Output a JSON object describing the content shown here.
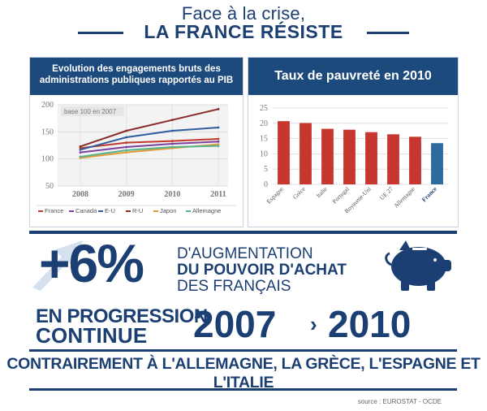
{
  "header": {
    "title_line1": "Face à la crise,",
    "title_line2": "LA FRANCE RÉSISTE"
  },
  "left_panel": {
    "title": "Evolution des engagements bruts des administrations publiques rapportés au PIB"
  },
  "right_panel": {
    "title": "Taux de pauvreté en 2010"
  },
  "chart_data": [
    {
      "type": "line",
      "annotation": "base 100 en 2007",
      "x": [
        "2008",
        "2009",
        "2010",
        "2011"
      ],
      "ylim": [
        50,
        200
      ],
      "yticks": [
        50,
        100,
        150,
        200
      ],
      "grid": true,
      "legend_position": "bottom",
      "series": [
        {
          "name": "France",
          "color": "#c0392b",
          "values": [
            120,
            130,
            133,
            137
          ]
        },
        {
          "name": "Canada",
          "color": "#7b3fa0",
          "values": [
            112,
            122,
            128,
            132
          ]
        },
        {
          "name": "E-U",
          "color": "#2e5d9f",
          "values": [
            117,
            140,
            152,
            158
          ]
        },
        {
          "name": "R-U",
          "color": "#8b2a2a",
          "values": [
            123,
            152,
            172,
            192
          ]
        },
        {
          "name": "Japon",
          "color": "#e39a3a",
          "values": [
            102,
            112,
            120,
            127
          ]
        },
        {
          "name": "Allemagne",
          "color": "#55b58a",
          "values": [
            104,
            116,
            122,
            124
          ]
        }
      ]
    },
    {
      "type": "bar",
      "categories": [
        "Espagne",
        "Grèce",
        "Italie",
        "Portugal",
        "Royaume-Uni",
        "UE 27",
        "Allemagne",
        "France"
      ],
      "values": [
        20.7,
        20.1,
        18.2,
        17.9,
        17.1,
        16.4,
        15.6,
        13.5
      ],
      "ylim": [
        0,
        25
      ],
      "yticks": [
        0,
        5,
        10,
        15,
        20,
        25
      ],
      "colors": {
        "default": "#c7372f",
        "highlight": "#2c6aa0"
      },
      "highlight": "France"
    }
  ],
  "stat": {
    "value": "+6%",
    "line1": "D'AUGMENTATION",
    "line2": "DU POUVOIR D'ACHAT",
    "line3": "DES FRANÇAIS"
  },
  "progression": {
    "line1": "EN PROGRESSION",
    "line2": "CONTINUE",
    "year_start": "2007",
    "arrow": "›",
    "year_end": "2010"
  },
  "footer": {
    "statement": "CONTRAIREMENT À L'ALLEMAGNE, LA GRÈCE, L'ESPAGNE ET L'ITALIE",
    "source": "source : EUROSTAT - OCDE"
  },
  "icons": {
    "arrow": "up-arrow-icon",
    "piggy": "piggy-bank-icon"
  },
  "colors": {
    "navy": "#1c3f73",
    "header_blue": "#1d4a7c",
    "bar_red": "#c7372f",
    "bar_blue": "#2c6aa0"
  }
}
